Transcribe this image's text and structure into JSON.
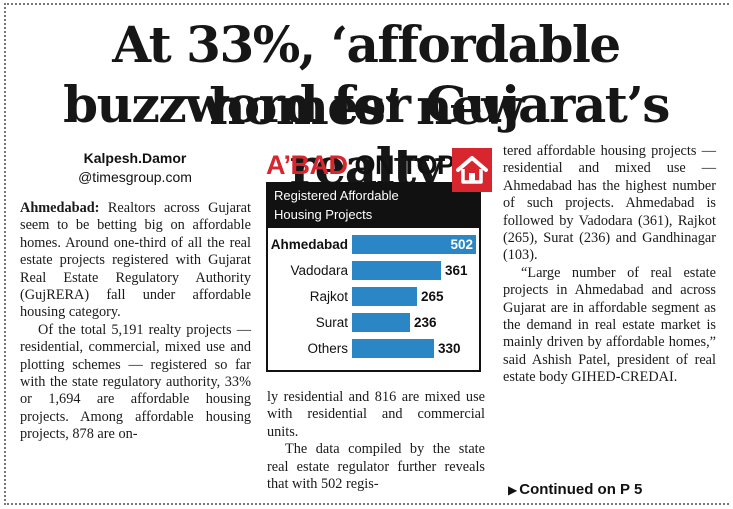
{
  "headline": {
    "line1": "At 33%, ‘affordable homes’ new",
    "line2": "buzzword for Gujarat’s realty"
  },
  "byline": {
    "name": "Kalpesh.Damor",
    "email": "@timesgroup.com"
  },
  "column1": {
    "dateline": "Ahmedabad:",
    "p1": "Realtors across Gujarat seem to be betting big on affordable homes. Around one-third of all the real estate projects registered with Gujarat Real Estate Regulatory Authority (GujRERA) fall under affordable housing category.",
    "p2": "Of the total 5,191 realty projects — residential, commercial, mixed use and plotting schemes — registered so far with the state regulatory authority, 33% or 1,694 are affordable housing projects. Among affordable housing projects, 878 are on-"
  },
  "column2": {
    "p1": "ly residential and 816 are mixed use with residential and commercial units.",
    "p2": "The data compiled by the state real estate regulator further reveals that with 502 regis-"
  },
  "column3": {
    "p1": "tered affordable housing projects — residential and mixed use — Ahmedabad has the highest number of such projects. Ahmedabad is followed by Vadodara (361), Rajkot (265), Surat (236) and Gandhinagar (103).",
    "p2": "“Large number of real estate projects in Ahmedabad and across Gujarat are in affordable segment as the demand in real estate market is mainly driven by affordable homes,” said Ashish Patel, president of real estate body GIHED-CREDAI."
  },
  "continued": {
    "arrow": "▶",
    "label": "Continued on P 5"
  },
  "chart_box": {
    "heading_red": "A’BAD",
    "heading_black": "ON TOP",
    "banner_line1": "Registered Affordable",
    "banner_line2": "Housing Projects",
    "icon": "house-icon"
  },
  "colors": {
    "bar": "#2b86c6",
    "accent_red": "#d7262e",
    "banner": "#111111"
  },
  "chart_data": {
    "type": "bar",
    "orientation": "horizontal",
    "title": "Registered Affordable Housing Projects",
    "categories": [
      "Ahmedabad",
      "Vadodara",
      "Rajkot",
      "Surat",
      "Others"
    ],
    "values": [
      502,
      361,
      265,
      236,
      330
    ],
    "highlight": "Ahmedabad",
    "xlim": [
      0,
      502
    ],
    "grid": false,
    "legend": "none"
  }
}
